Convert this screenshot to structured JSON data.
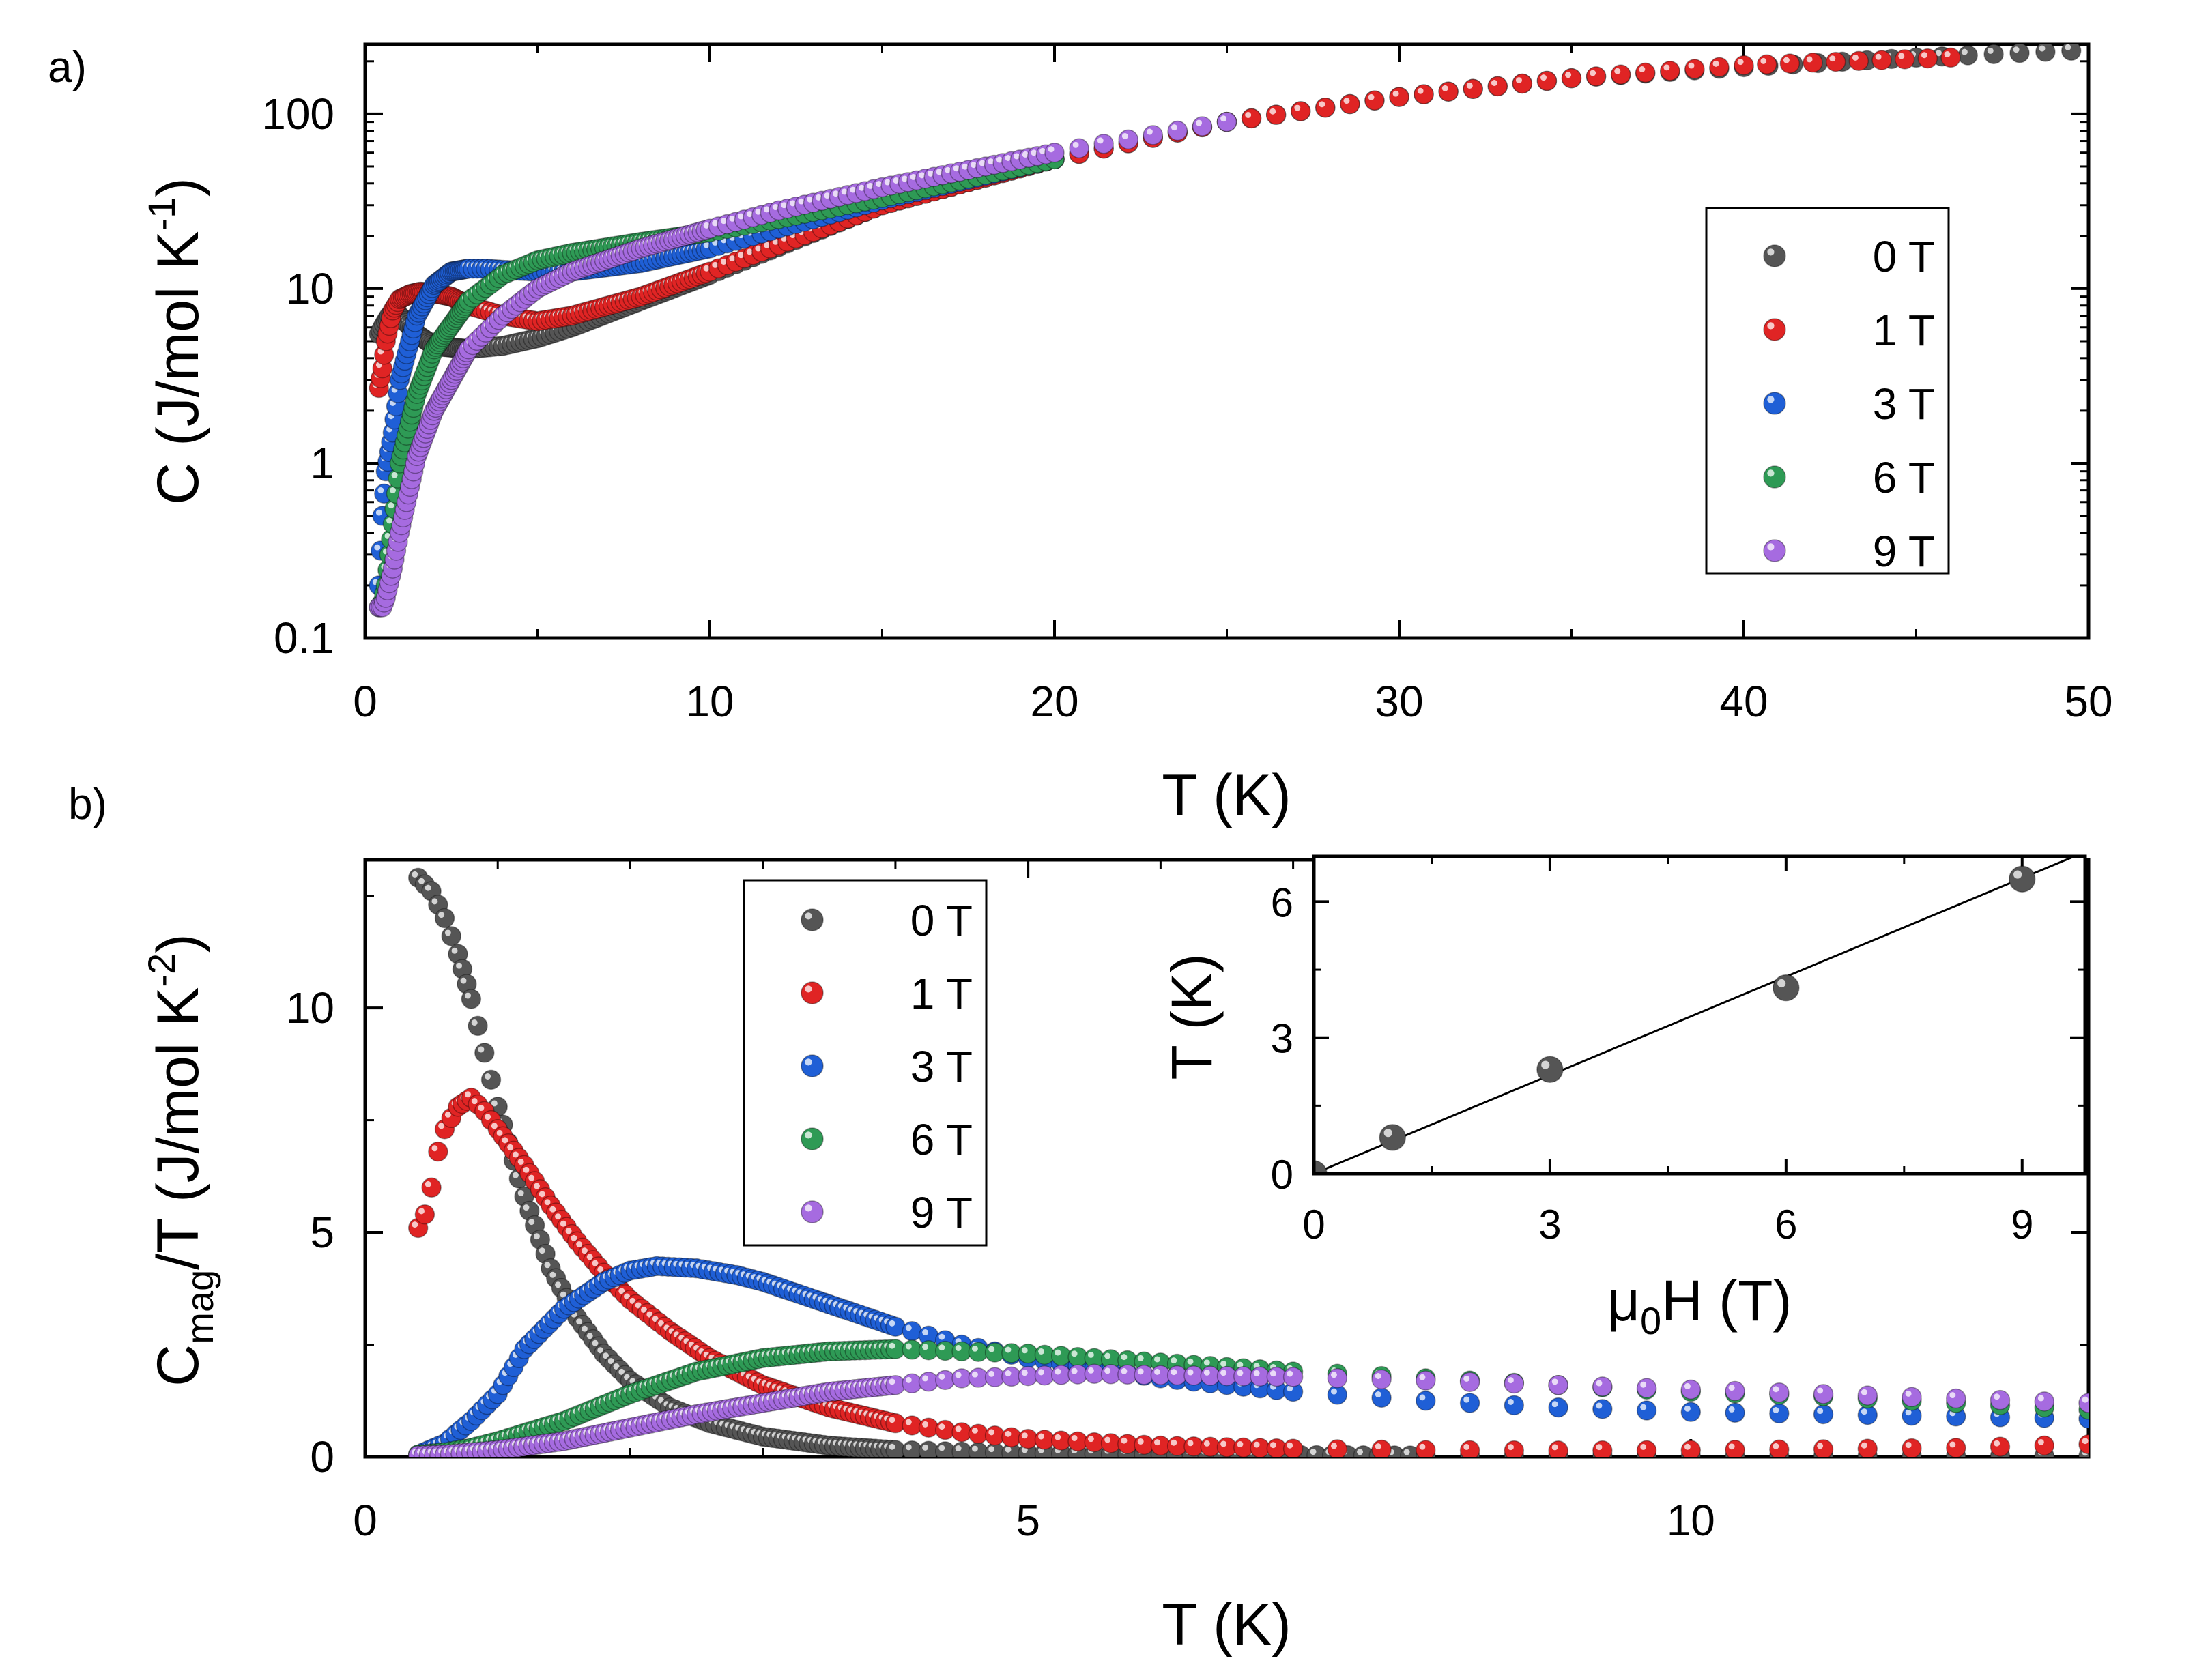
{
  "chart_data": [
    {
      "id": "a",
      "panel_label": "a)",
      "type": "scatter",
      "yscale": "log",
      "xlabel": "T (K)",
      "ylabel": {
        "base": "C (J/mol K",
        "sup": "-1",
        "tail": ")"
      },
      "xlim": [
        0,
        50
      ],
      "ylim": [
        0.1,
        250
      ],
      "xticks": [
        0,
        10,
        20,
        30,
        40,
        50
      ],
      "xtick_labels": [
        "0",
        "10",
        "20",
        "30",
        "40",
        "50"
      ],
      "yticks": [
        0.1,
        1,
        10,
        100
      ],
      "ytick_labels": [
        "0.1",
        "1",
        "10",
        "100"
      ],
      "legend_position": "right",
      "series": [
        {
          "name": "0 T",
          "color": "#555555",
          "x": [
            0.4,
            0.5,
            0.6,
            0.7,
            0.8,
            1.0,
            1.5,
            2.0,
            3.0,
            4.0,
            5.0,
            6.0,
            8.0,
            10.0,
            15.0,
            20.0,
            25.0,
            30.0,
            35.0,
            40.0,
            45.0,
            49.5
          ],
          "y": [
            5.5,
            6.0,
            6.5,
            7.0,
            7.2,
            7.0,
            5.5,
            4.7,
            4.5,
            4.7,
            5.2,
            6.0,
            8.5,
            12.0,
            30.0,
            55.0,
            90.0,
            125.0,
            160.0,
            185.0,
            210.0,
            230.0
          ]
        },
        {
          "name": "1 T",
          "color": "#e02424",
          "x": [
            0.4,
            0.5,
            0.6,
            0.8,
            1.0,
            1.3,
            1.6,
            2.0,
            2.5,
            3.0,
            4.0,
            5.0,
            6.0,
            8.0,
            10.0,
            15.0,
            20.0,
            25.0,
            30.0,
            35.0,
            40.0,
            46.0
          ],
          "y": [
            2.7,
            3.5,
            5.0,
            7.5,
            8.7,
            9.3,
            9.6,
            9.4,
            9.0,
            8.0,
            7.0,
            6.5,
            7.0,
            9.0,
            12.5,
            30.0,
            55.0,
            90.0,
            125.0,
            160.0,
            190.0,
            210.0
          ]
        },
        {
          "name": "3 T",
          "color": "#1f5fd6",
          "x": [
            0.4,
            0.5,
            0.6,
            0.8,
            1.0,
            1.5,
            2.0,
            2.5,
            3.0,
            3.5,
            4.0,
            5.0,
            6.0,
            8.0,
            10.0,
            12.0,
            15.0,
            20.0
          ],
          "y": [
            0.2,
            0.5,
            0.9,
            1.5,
            3.0,
            7.0,
            10.5,
            12.5,
            13.0,
            13.0,
            12.8,
            12.5,
            12.5,
            14.0,
            17.0,
            22.0,
            32.0,
            55.0
          ]
        },
        {
          "name": "6 T",
          "color": "#2e9a55",
          "x": [
            0.4,
            0.5,
            0.6,
            0.8,
            1.0,
            1.5,
            2.0,
            3.0,
            4.0,
            5.0,
            6.0,
            8.0,
            10.0,
            12.0,
            15.0,
            20.0
          ],
          "y": [
            0.15,
            0.16,
            0.2,
            0.45,
            1.0,
            2.5,
            4.5,
            8.5,
            12.0,
            14.5,
            16.0,
            18.5,
            21.0,
            25.0,
            33.0,
            55.0
          ]
        },
        {
          "name": "9 T",
          "color": "#a66be0",
          "x": [
            0.4,
            0.5,
            0.6,
            0.8,
            1.0,
            1.5,
            2.0,
            3.0,
            4.0,
            5.0,
            6.0,
            8.0,
            10.0,
            12.0,
            15.0,
            20.0,
            25.0
          ],
          "y": [
            0.15,
            0.15,
            0.17,
            0.25,
            0.4,
            1.1,
            2.0,
            4.5,
            7.0,
            10.0,
            12.5,
            17.0,
            22.0,
            28.0,
            38.0,
            60.0,
            90.0
          ]
        }
      ]
    },
    {
      "id": "b",
      "panel_label": "b)",
      "type": "scatter",
      "xlabel": "T (K)",
      "ylabel": {
        "base": "C",
        "sub": "mag",
        "mid": "/T (J/mol K",
        "sup": "-2",
        "tail": ")"
      },
      "xlim": [
        0,
        13
      ],
      "ylim": [
        0,
        13.3
      ],
      "xticks": [
        0,
        5,
        10
      ],
      "xtick_labels": [
        "0",
        "5",
        "10"
      ],
      "yticks": [
        0,
        5,
        10
      ],
      "ytick_labels": [
        "0",
        "5",
        "10"
      ],
      "legend_position": "top-center",
      "series": [
        {
          "name": "0 T",
          "color": "#555555",
          "x": [
            0.4,
            0.5,
            0.6,
            0.7,
            0.8,
            0.9,
            1.0,
            1.2,
            1.4,
            1.6,
            1.8,
            2.0,
            2.3,
            2.6,
            3.0,
            3.5,
            4.0,
            5.0,
            6.0,
            8.0,
            10.0,
            12.0,
            13.0
          ],
          "y": [
            12.9,
            12.6,
            12.0,
            11.2,
            10.2,
            9.0,
            7.8,
            5.8,
            4.2,
            3.1,
            2.3,
            1.7,
            1.1,
            0.75,
            0.45,
            0.25,
            0.15,
            0.08,
            0.05,
            0.03,
            0.02,
            0.02,
            0.02
          ]
        },
        {
          "name": "1 T",
          "color": "#e02424",
          "x": [
            0.4,
            0.45,
            0.5,
            0.55,
            0.6,
            0.7,
            0.8,
            0.9,
            1.0,
            1.2,
            1.4,
            1.6,
            1.8,
            2.0,
            2.3,
            2.6,
            3.0,
            3.5,
            4.0,
            4.5,
            5.0,
            6.0,
            7.0,
            8.0,
            9.0,
            10.0,
            11.0,
            12.0,
            13.0
          ],
          "y": [
            5.1,
            5.4,
            6.0,
            6.8,
            7.3,
            7.8,
            8.0,
            7.7,
            7.3,
            6.5,
            5.6,
            4.8,
            4.1,
            3.5,
            2.8,
            2.2,
            1.6,
            1.1,
            0.75,
            0.55,
            0.4,
            0.25,
            0.18,
            0.15,
            0.14,
            0.15,
            0.17,
            0.2,
            0.28
          ]
        },
        {
          "name": "3 T",
          "color": "#1f5fd6",
          "x": [
            0.4,
            0.6,
            0.8,
            1.0,
            1.2,
            1.5,
            1.8,
            2.0,
            2.2,
            2.5,
            2.8,
            3.0,
            3.5,
            4.0,
            4.5,
            5.0,
            6.0,
            7.0,
            8.0,
            9.0,
            10.0,
            11.0,
            12.0,
            13.0
          ],
          "y": [
            0.05,
            0.3,
            0.8,
            1.4,
            2.4,
            3.3,
            3.9,
            4.15,
            4.25,
            4.2,
            4.05,
            3.9,
            3.4,
            2.9,
            2.5,
            2.2,
            1.75,
            1.45,
            1.25,
            1.1,
            1.0,
            0.95,
            0.9,
            0.85
          ]
        },
        {
          "name": "6 T",
          "color": "#2e9a55",
          "x": [
            0.4,
            0.6,
            0.8,
            1.0,
            1.5,
            2.0,
            2.5,
            3.0,
            3.5,
            4.0,
            4.5,
            5.0,
            6.0,
            7.0,
            8.0,
            9.0,
            10.0,
            11.0,
            12.0,
            13.0
          ],
          "y": [
            0.05,
            0.1,
            0.2,
            0.35,
            0.8,
            1.4,
            1.9,
            2.2,
            2.35,
            2.4,
            2.35,
            2.3,
            2.1,
            1.9,
            1.75,
            1.6,
            1.45,
            1.35,
            1.2,
            1.05
          ]
        },
        {
          "name": "9 T",
          "color": "#a66be0",
          "x": [
            0.4,
            0.6,
            0.8,
            1.0,
            1.5,
            2.0,
            2.5,
            3.0,
            3.5,
            4.0,
            4.5,
            5.0,
            5.5,
            6.0,
            6.5,
            7.0,
            8.0,
            9.0,
            10.0,
            11.0,
            12.0,
            13.0
          ],
          "y": [
            0.03,
            0.05,
            0.1,
            0.15,
            0.35,
            0.65,
            0.95,
            1.2,
            1.45,
            1.6,
            1.75,
            1.8,
            1.85,
            1.82,
            1.8,
            1.78,
            1.7,
            1.6,
            1.5,
            1.4,
            1.3,
            1.2
          ]
        }
      ]
    },
    {
      "id": "b-inset",
      "type": "scatter",
      "xlabel": {
        "base": "μ",
        "sub": "0",
        "tail": "H (T)"
      },
      "ylabel": "T (K)",
      "xlim": [
        0,
        9.8
      ],
      "ylim": [
        0,
        7.0
      ],
      "xticks": [
        0,
        3,
        6,
        9
      ],
      "xtick_labels": [
        "0",
        "3",
        "6",
        "9"
      ],
      "yticks": [
        0,
        3,
        6
      ],
      "ytick_labels": [
        "0",
        "3",
        "6"
      ],
      "points": {
        "x": [
          0,
          1,
          3,
          6,
          9
        ],
        "y": [
          0.0,
          0.8,
          2.3,
          4.1,
          6.5
        ]
      },
      "fit_line": {
        "x": [
          0,
          9.8
        ],
        "y": [
          0.0,
          7.1
        ]
      }
    }
  ]
}
